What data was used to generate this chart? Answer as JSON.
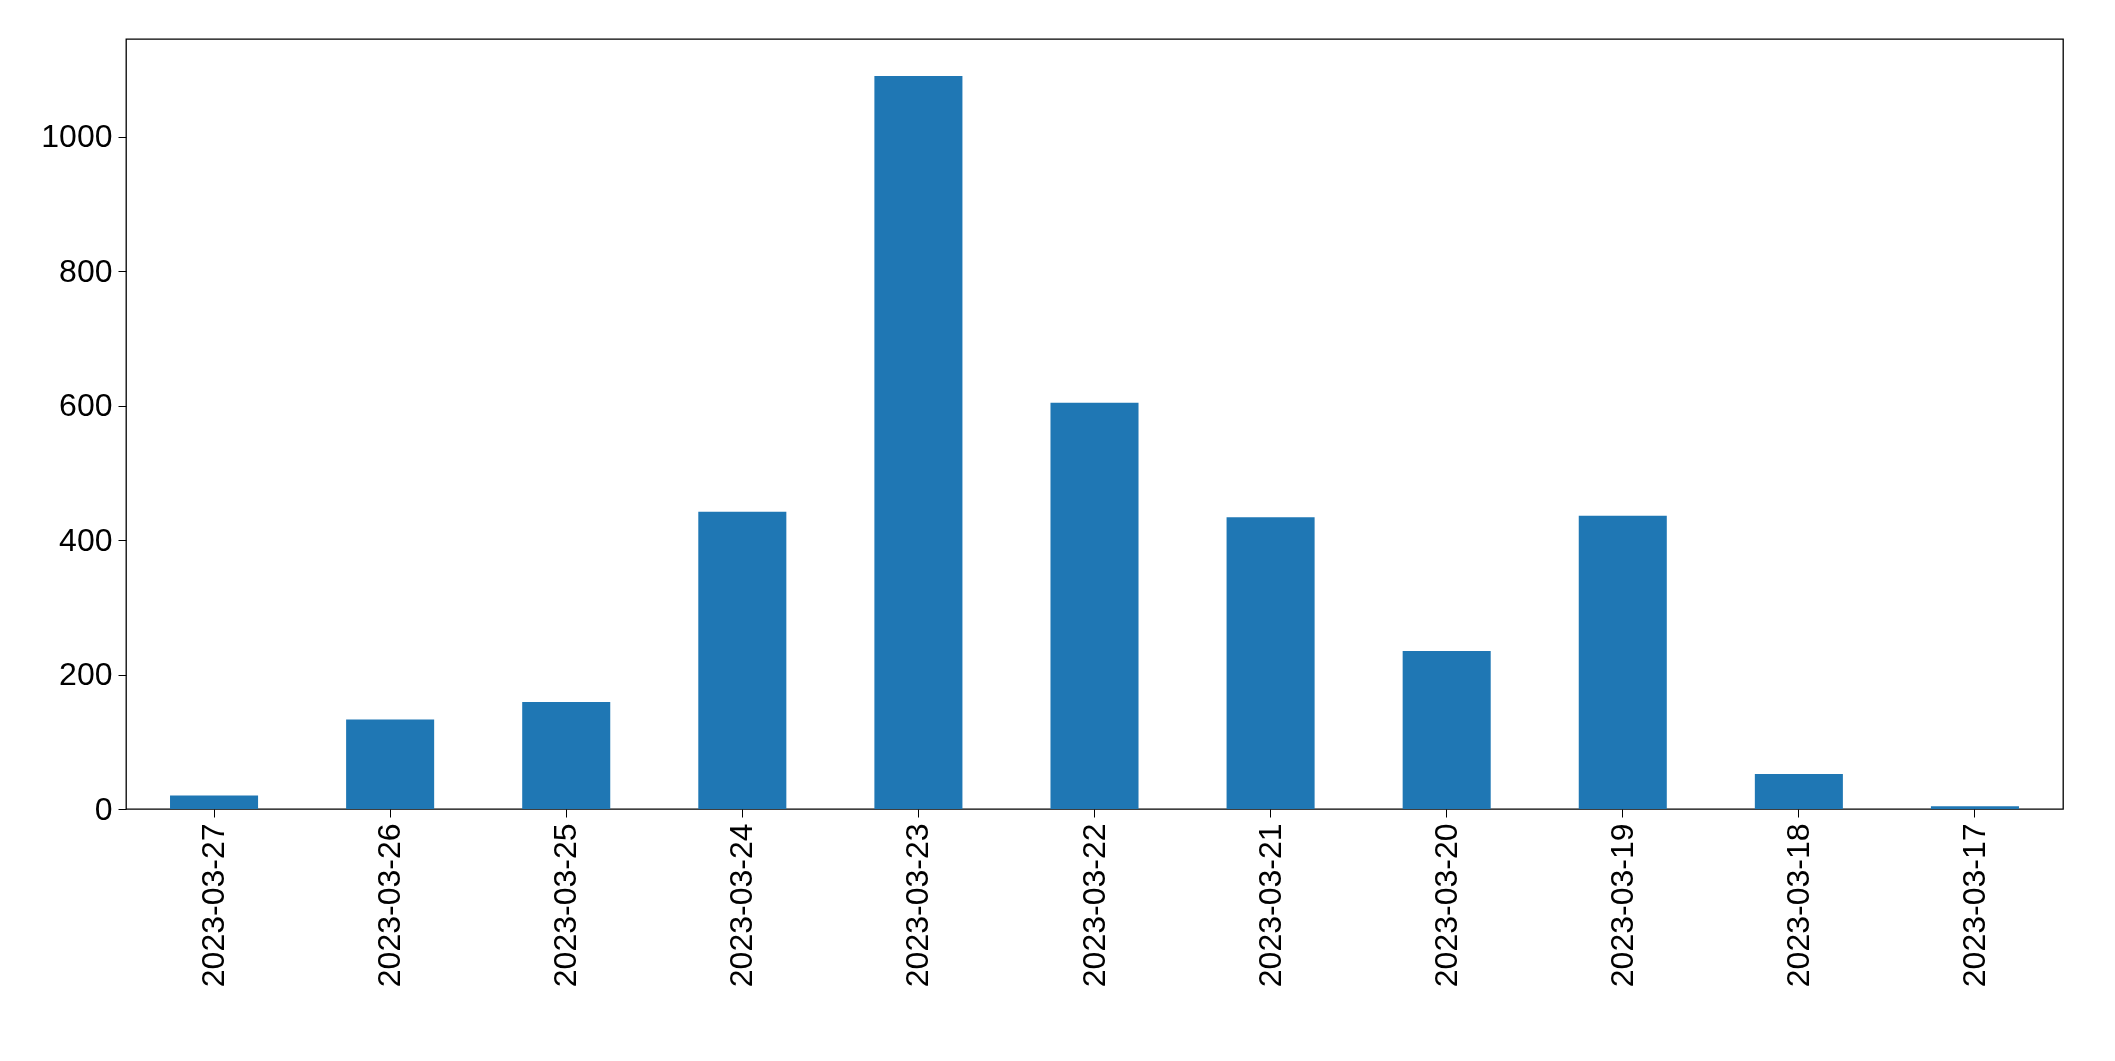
{
  "chart_data": {
    "type": "bar",
    "categories": [
      "2023-03-27",
      "2023-03-26",
      "2023-03-25",
      "2023-03-24",
      "2023-03-23",
      "2023-03-22",
      "2023-03-21",
      "2023-03-20",
      "2023-03-19",
      "2023-03-18",
      "2023-03-17"
    ],
    "values": [
      20,
      133,
      159,
      442,
      1090,
      604,
      434,
      235,
      436,
      52,
      4
    ],
    "color": "#1f77b4",
    "ylim": [
      0,
      1145
    ],
    "yticks": [
      0,
      200,
      400,
      600,
      800,
      1000
    ],
    "grid": false
  }
}
